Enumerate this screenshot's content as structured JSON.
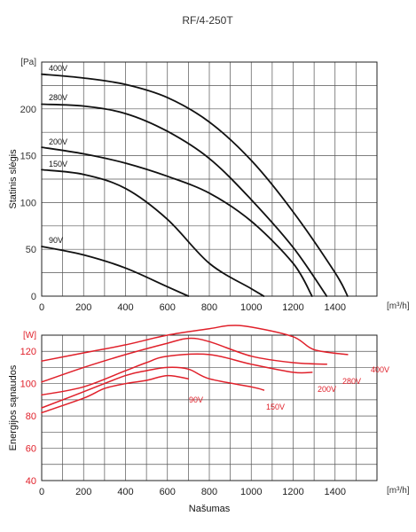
{
  "chart_data": [
    {
      "type": "line",
      "title": "RF/4-250T",
      "ylabel": "Statinis slėgis",
      "yunit": "[Pa]",
      "xunit": "[m³/h]",
      "xlim": [
        0,
        1600
      ],
      "ylim": [
        0,
        250
      ],
      "xticks": [
        "0",
        "200",
        "400",
        "600",
        "800",
        "1000",
        "1200",
        "1400"
      ],
      "yticks": [
        "0",
        "50",
        "100",
        "150",
        "200"
      ],
      "grid": true,
      "line_color": "#111111",
      "series": [
        {
          "name": "400V",
          "x": [
            0,
            200,
            400,
            600,
            800,
            1000,
            1200,
            1400,
            1460
          ],
          "y": [
            237,
            233,
            226,
            212,
            186,
            145,
            90,
            25,
            0
          ]
        },
        {
          "name": "280V",
          "x": [
            0,
            200,
            400,
            600,
            800,
            1000,
            1200,
            1360
          ],
          "y": [
            205,
            203,
            195,
            176,
            147,
            103,
            52,
            0
          ]
        },
        {
          "name": "200V",
          "x": [
            0,
            200,
            400,
            600,
            800,
            1000,
            1200,
            1290
          ],
          "y": [
            159,
            152,
            142,
            128,
            110,
            80,
            35,
            0
          ]
        },
        {
          "name": "150V",
          "x": [
            0,
            200,
            400,
            600,
            800,
            1000,
            1060
          ],
          "y": [
            135,
            130,
            115,
            82,
            35,
            8,
            0
          ]
        },
        {
          "name": "90V",
          "x": [
            0,
            200,
            400,
            600,
            700
          ],
          "y": [
            53,
            44,
            30,
            10,
            0
          ]
        }
      ]
    },
    {
      "type": "line",
      "ylabel": "Energijos sąnaudos",
      "yunit": "[W]",
      "xlabel": "Našumas",
      "xunit": "[m³/h]",
      "xlim": [
        0,
        1600
      ],
      "ylim": [
        40,
        130
      ],
      "xticks": [
        "0",
        "200",
        "400",
        "600",
        "800",
        "1000",
        "1200",
        "1400"
      ],
      "yticks": [
        "40",
        "60",
        "80",
        "100",
        "120"
      ],
      "grid": true,
      "line_color": "#e0202a",
      "series": [
        {
          "name": "400V",
          "x": [
            0,
            200,
            400,
            600,
            800,
            900,
            1000,
            1200,
            1300,
            1460
          ],
          "y": [
            114,
            119,
            124,
            130,
            134,
            136,
            135,
            129,
            121,
            118
          ]
        },
        {
          "name": "280V",
          "x": [
            0,
            200,
            400,
            600,
            700,
            800,
            1000,
            1200,
            1360
          ],
          "y": [
            101,
            110,
            118,
            125,
            128,
            126,
            117,
            113,
            112
          ]
        },
        {
          "name": "200V",
          "x": [
            0,
            200,
            400,
            500,
            600,
            800,
            1000,
            1200,
            1290
          ],
          "y": [
            93,
            98,
            108,
            113,
            117,
            118,
            112,
            107,
            107
          ]
        },
        {
          "name": "150V",
          "x": [
            0,
            200,
            400,
            500,
            600,
            700,
            800,
            1000,
            1060
          ],
          "y": [
            85,
            95,
            105,
            108,
            110,
            109,
            103,
            98,
            96
          ]
        },
        {
          "name": "90V",
          "x": [
            0,
            200,
            300,
            400,
            500,
            600,
            700
          ],
          "y": [
            82,
            91,
            97,
            100,
            102,
            105,
            103
          ]
        }
      ]
    }
  ]
}
